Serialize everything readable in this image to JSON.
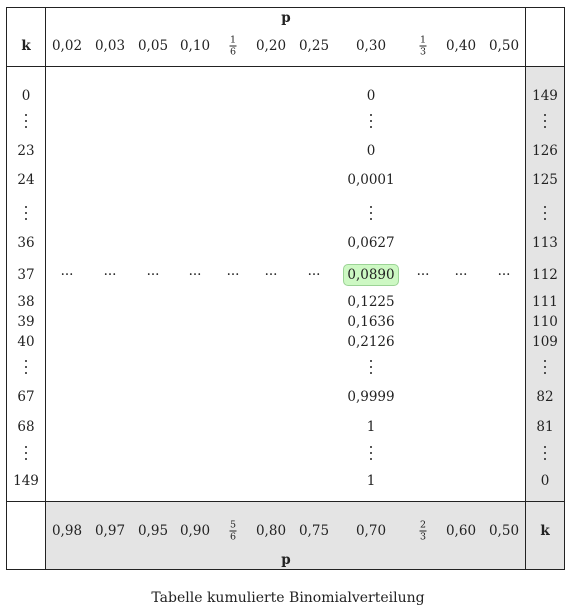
{
  "table": {
    "p_label": "p",
    "k_label": "k",
    "top_p": [
      "0,02",
      "0,03",
      "0,05",
      "0,10",
      "1/6",
      "0,20",
      "0,25",
      "0,30",
      "1/3",
      "0,40",
      "0,50"
    ],
    "bottom_p": [
      "0,98",
      "0,97",
      "0,95",
      "0,90",
      "5/6",
      "0,80",
      "0,75",
      "0,70",
      "2/3",
      "0,60",
      "0,50"
    ],
    "rows": [
      {
        "k": "0",
        "value": "0",
        "kc": "149"
      },
      {
        "k": "⋮",
        "value": "⋮",
        "kc": "⋮"
      },
      {
        "k": "23",
        "value": "0",
        "kc": "126"
      },
      {
        "k": "24",
        "value": "0,0001",
        "kc": "125"
      },
      {
        "k": "⋮",
        "value": "⋮",
        "kc": "⋮"
      },
      {
        "k": "36",
        "value": "0,0627",
        "kc": "113"
      },
      {
        "k": "37",
        "value": "0,0890",
        "kc": "112",
        "highlight": true
      },
      {
        "k": "38",
        "value": "0,1225",
        "kc": "111"
      },
      {
        "k": "39",
        "value": "0,1636",
        "kc": "110"
      },
      {
        "k": "40",
        "value": "0,2126",
        "kc": "109"
      },
      {
        "k": "⋮",
        "value": "⋮",
        "kc": "⋮"
      },
      {
        "k": "67",
        "value": "0,9999",
        "kc": "82"
      },
      {
        "k": "68",
        "value": "1",
        "kc": "81"
      },
      {
        "k": "⋮",
        "value": "⋮",
        "kc": "⋮"
      },
      {
        "k": "149",
        "value": "1",
        "kc": "0"
      }
    ],
    "dots": "···",
    "highlight_color": "#cdf8c3"
  },
  "caption": "Tabelle kumulierte Binomialverteilung"
}
